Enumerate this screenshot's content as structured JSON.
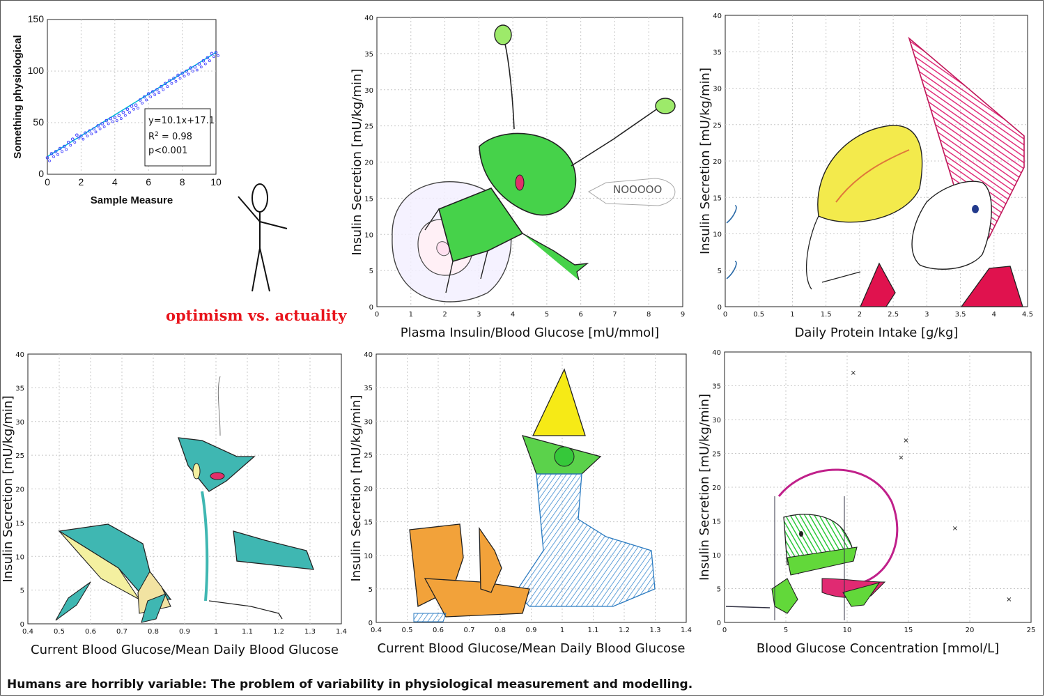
{
  "caption": "Humans are horribly variable: The problem of variability in physiological measurement and modelling.",
  "optimism_label": "optimism vs. actuality",
  "colors": {
    "series": "#3838ff",
    "fit": "#00b8d8",
    "label_red": "#e8141c",
    "grid": "#c8c8c8"
  },
  "chart_data": [
    {
      "type": "scatter",
      "xlabel": "Sample Measure",
      "ylabel": "Something physiological",
      "xlim": [
        0,
        10
      ],
      "ylim": [
        0,
        150
      ],
      "xticks": [
        "0",
        "2",
        "4",
        "6",
        "8",
        "10"
      ],
      "yticks": [
        "0",
        "50",
        "100",
        "150"
      ],
      "grid": true,
      "fit": {
        "slope": 10.1,
        "intercept": 17.1
      },
      "stats": {
        "eq": "y=10.1x+17.1",
        "r2_prefix": "R",
        "r2_sup": "2",
        "r2_value": " = 0.98",
        "p": "p<0.001"
      },
      "x": [
        0,
        0.25,
        0.5,
        0.75,
        1,
        1.25,
        1.5,
        1.75,
        2,
        2.25,
        2.5,
        2.75,
        3,
        3.25,
        3.5,
        3.75,
        4,
        4.25,
        4.5,
        4.75,
        5,
        5.25,
        5.5,
        5.75,
        6,
        6.25,
        6.5,
        6.75,
        7,
        7.25,
        7.5,
        7.75,
        8,
        8.25,
        8.5,
        8.75,
        9,
        9.25,
        9.5,
        9.75,
        10
      ],
      "y": [
        16,
        20,
        22,
        25,
        27,
        31,
        34,
        38,
        37,
        40,
        42,
        44,
        47,
        49,
        52,
        54,
        55,
        57,
        60,
        63,
        66,
        67,
        72,
        75,
        78,
        80,
        82,
        85,
        88,
        91,
        93,
        96,
        98,
        100,
        103,
        104,
        107,
        110,
        113,
        117,
        118
      ]
    },
    {
      "type": "line",
      "xlabel": "Plasma Insulin/Blood Glucose [mU/mmol]",
      "ylabel": "Insulin Secretion [mU/kg/min]",
      "xlim": [
        0,
        9
      ],
      "ylim": [
        0,
        40
      ],
      "xticks": [
        "0",
        "1",
        "2",
        "3",
        "4",
        "5",
        "6",
        "7",
        "8",
        "9"
      ],
      "yticks": [
        "0",
        "5",
        "10",
        "15",
        "20",
        "25",
        "30",
        "35",
        "40"
      ],
      "grid": true,
      "annotation": "NOOOOO"
    },
    {
      "type": "line",
      "xlabel": "Daily Protein Intake [g/kg]",
      "ylabel": "Insulin Secretion [mU/kg/min]",
      "xlim": [
        0,
        4.5
      ],
      "ylim": [
        0,
        40
      ],
      "xticks": [
        "0",
        "0.5",
        "1",
        "1.5",
        "2",
        "2.5",
        "3",
        "3.5",
        "4",
        "4.5"
      ],
      "yticks": [
        "0",
        "5",
        "10",
        "15",
        "20",
        "25",
        "30",
        "35",
        "40"
      ],
      "grid": true
    },
    {
      "type": "line",
      "xlabel": "Current Blood Glucose/Mean Daily Blood Glucose",
      "ylabel": "Insulin Secretion [mU/kg/min]",
      "xlim": [
        0.4,
        1.4
      ],
      "ylim": [
        0,
        40
      ],
      "xticks": [
        "0.4",
        "0.5",
        "0.6",
        "0.7",
        "0.8",
        "0.9",
        "1",
        "1.1",
        "1.2",
        "1.3",
        "1.4"
      ],
      "yticks": [
        "0",
        "5",
        "10",
        "15",
        "20",
        "25",
        "30",
        "35",
        "40"
      ],
      "grid": true
    },
    {
      "type": "line",
      "xlabel": "Current Blood Glucose/Mean Daily Blood Glucose",
      "ylabel": "Insulin Secretion [mU/kg/min]",
      "xlim": [
        0.4,
        1.4
      ],
      "ylim": [
        0,
        40
      ],
      "xticks": [
        "0.4",
        "0.5",
        "0.6",
        "0.7",
        "0.8",
        "0.9",
        "1",
        "1.1",
        "1.2",
        "1.3",
        "1.4"
      ],
      "yticks": [
        "0",
        "5",
        "10",
        "15",
        "20",
        "25",
        "30",
        "35",
        "40"
      ],
      "grid": true
    },
    {
      "type": "scatter",
      "xlabel": "Blood Glucose Concentration [mmol/L]",
      "ylabel": "Insulin Secretion [mU/kg/min]",
      "xlim": [
        0,
        25
      ],
      "ylim": [
        0,
        40
      ],
      "xticks": [
        "0",
        "5",
        "10",
        "15",
        "20",
        "25"
      ],
      "yticks": [
        "0",
        "5",
        "10",
        "15",
        "20",
        "25",
        "30",
        "35",
        "40"
      ],
      "grid": true,
      "x": [
        10.5,
        14.8,
        14.4,
        18.8,
        23.2,
        7.8,
        5.9,
        9.4,
        12.5
      ],
      "y": [
        37,
        27,
        24.5,
        14,
        3.5,
        8.5,
        7.5,
        10,
        5.5
      ]
    }
  ]
}
